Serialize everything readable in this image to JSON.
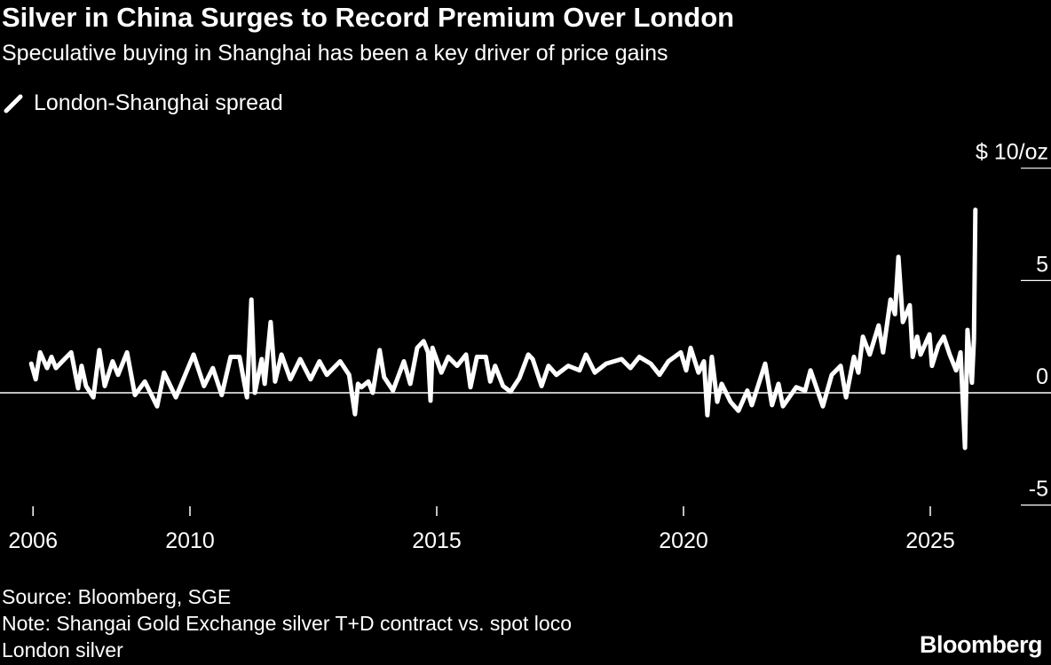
{
  "chart_data": {
    "type": "line",
    "title": "Silver in China Surges to Record Premium Over London",
    "subtitle": "Speculative buying in Shanghai has been a key driver of price gains",
    "ylabel": "$ 10/oz",
    "ylim": [
      -5,
      10
    ],
    "yticks": [
      {
        "value": 10,
        "label": "$ 10/oz"
      },
      {
        "value": 5,
        "label": "5"
      },
      {
        "value": 0,
        "label": "0"
      },
      {
        "value": -5,
        "label": "-5"
      }
    ],
    "xticks": [
      2006,
      2010,
      2015,
      2020,
      2025
    ],
    "grid": "horizontal",
    "legend_placement": "top-left",
    "series": [
      {
        "name": "London-Shanghai spread",
        "color": "#ffffff",
        "points": [
          [
            2006.82,
            1.3
          ],
          [
            2006.91,
            0.6
          ],
          [
            2007.0,
            1.8
          ],
          [
            2007.14,
            1.1
          ],
          [
            2007.23,
            1.6
          ],
          [
            2007.32,
            1.1
          ],
          [
            2007.45,
            1.4
          ],
          [
            2007.63,
            1.8
          ],
          [
            2007.77,
            0.2
          ],
          [
            2007.84,
            1.2
          ],
          [
            2007.93,
            0.3
          ],
          [
            2008.08,
            -0.2
          ],
          [
            2008.2,
            1.9
          ],
          [
            2008.31,
            0.3
          ],
          [
            2008.47,
            1.4
          ],
          [
            2008.58,
            0.8
          ],
          [
            2008.76,
            1.8
          ],
          [
            2008.92,
            -0.1
          ],
          [
            2009.12,
            0.5
          ],
          [
            2009.37,
            -0.6
          ],
          [
            2009.51,
            0.9
          ],
          [
            2009.75,
            -0.2
          ],
          [
            2010.11,
            1.7
          ],
          [
            2010.32,
            0.3
          ],
          [
            2010.5,
            1.1
          ],
          [
            2010.68,
            -0.1
          ],
          [
            2010.86,
            1.6
          ],
          [
            2011.04,
            1.6
          ],
          [
            2011.19,
            -0.2
          ],
          [
            2011.28,
            4.15
          ],
          [
            2011.35,
            0.0
          ],
          [
            2011.49,
            1.5
          ],
          [
            2011.55,
            0.4
          ],
          [
            2011.67,
            3.15
          ],
          [
            2011.76,
            0.5
          ],
          [
            2011.89,
            1.7
          ],
          [
            2012.07,
            0.6
          ],
          [
            2012.27,
            1.5
          ],
          [
            2012.48,
            0.6
          ],
          [
            2012.66,
            1.4
          ],
          [
            2012.81,
            0.8
          ],
          [
            2013.08,
            1.4
          ],
          [
            2013.26,
            0.8
          ],
          [
            2013.38,
            -0.95
          ],
          [
            2013.44,
            0.4
          ],
          [
            2013.51,
            0.25
          ],
          [
            2013.65,
            0.5
          ],
          [
            2013.74,
            0.0
          ],
          [
            2013.88,
            1.9
          ],
          [
            2013.97,
            0.7
          ],
          [
            2014.15,
            0.1
          ],
          [
            2014.37,
            1.4
          ],
          [
            2014.5,
            0.4
          ],
          [
            2014.64,
            2.0
          ],
          [
            2014.77,
            2.3
          ],
          [
            2014.86,
            1.8
          ],
          [
            2014.91,
            -0.35
          ],
          [
            2014.95,
            2.0
          ],
          [
            2015.13,
            0.9
          ],
          [
            2015.27,
            1.6
          ],
          [
            2015.45,
            1.2
          ],
          [
            2015.63,
            1.7
          ],
          [
            2015.72,
            0.25
          ],
          [
            2015.85,
            1.6
          ],
          [
            2016.03,
            1.6
          ],
          [
            2016.12,
            0.5
          ],
          [
            2016.22,
            1.2
          ],
          [
            2016.38,
            0.3
          ],
          [
            2016.53,
            0.05
          ],
          [
            2016.71,
            0.65
          ],
          [
            2016.89,
            1.7
          ],
          [
            2016.98,
            1.5
          ],
          [
            2017.16,
            0.3
          ],
          [
            2017.3,
            1.2
          ],
          [
            2017.46,
            0.8
          ],
          [
            2017.7,
            1.2
          ],
          [
            2017.93,
            1.0
          ],
          [
            2018.06,
            1.7
          ],
          [
            2018.24,
            0.9
          ],
          [
            2018.47,
            1.3
          ],
          [
            2018.78,
            1.5
          ],
          [
            2018.96,
            1.1
          ],
          [
            2019.14,
            1.6
          ],
          [
            2019.37,
            1.3
          ],
          [
            2019.55,
            0.8
          ],
          [
            2019.73,
            1.4
          ],
          [
            2019.98,
            1.8
          ],
          [
            2020.09,
            1.0
          ],
          [
            2020.18,
            2.0
          ],
          [
            2020.34,
            0.9
          ],
          [
            2020.45,
            1.4
          ],
          [
            2020.52,
            -1.0
          ],
          [
            2020.61,
            1.6
          ],
          [
            2020.72,
            -0.4
          ],
          [
            2020.81,
            0.4
          ],
          [
            2020.99,
            -0.4
          ],
          [
            2021.15,
            -0.8
          ],
          [
            2021.33,
            0.1
          ],
          [
            2021.42,
            -0.55
          ],
          [
            2021.69,
            1.3
          ],
          [
            2021.83,
            -0.55
          ],
          [
            2021.96,
            0.4
          ],
          [
            2022.05,
            -0.6
          ],
          [
            2022.32,
            0.25
          ],
          [
            2022.5,
            0.1
          ],
          [
            2022.61,
            1.0
          ],
          [
            2022.86,
            -0.6
          ],
          [
            2023.04,
            0.8
          ],
          [
            2023.22,
            1.2
          ],
          [
            2023.33,
            -0.2
          ],
          [
            2023.49,
            1.6
          ],
          [
            2023.58,
            0.9
          ],
          [
            2023.67,
            2.5
          ],
          [
            2023.81,
            1.7
          ],
          [
            2023.99,
            3.0
          ],
          [
            2024.08,
            1.8
          ],
          [
            2024.23,
            4.15
          ],
          [
            2024.32,
            3.5
          ],
          [
            2024.39,
            6.05
          ],
          [
            2024.48,
            3.15
          ],
          [
            2024.62,
            3.9
          ],
          [
            2024.68,
            1.6
          ],
          [
            2024.77,
            2.5
          ],
          [
            2024.84,
            1.7
          ],
          [
            2025.02,
            2.6
          ],
          [
            2025.07,
            1.2
          ],
          [
            2025.2,
            2.1
          ],
          [
            2025.31,
            2.5
          ],
          [
            2025.43,
            1.7
          ],
          [
            2025.56,
            1.0
          ],
          [
            2025.65,
            1.8
          ],
          [
            2025.74,
            -2.45
          ],
          [
            2025.79,
            2.8
          ],
          [
            2025.88,
            0.45
          ],
          [
            2025.92,
            2.4
          ],
          [
            2025.95,
            8.15
          ]
        ]
      }
    ]
  },
  "footer": {
    "source": "Source: Bloomberg, SGE",
    "note_line1": "Note: Shangai Gold Exchange silver T+D contract vs. spot loco",
    "note_line2": "London silver",
    "logo": "Bloomberg"
  }
}
